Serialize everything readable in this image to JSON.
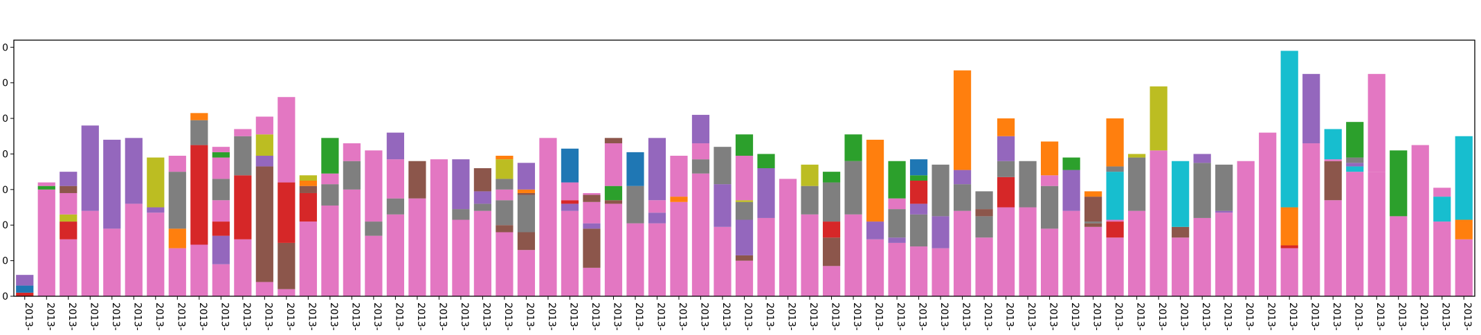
{
  "chart_data": {
    "type": "bar",
    "stacked": true,
    "title": "",
    "xlabel": "",
    "ylabel": "",
    "ylim": [
      0,
      72
    ],
    "y_ticks": [
      0,
      10,
      20,
      30,
      40,
      50,
      60,
      70
    ],
    "y_tick_labels_visible": [
      "0",
      "0",
      "0",
      "0",
      "0",
      "0",
      "0",
      "0"
    ],
    "x_tick_label_visible": "2013-",
    "grid": false,
    "legend": "none",
    "category_count": 67,
    "colors": {
      "pink": "#e377c2",
      "purple": "#9467bd",
      "gray": "#7f7f7f",
      "red": "#d62728",
      "brown": "#8c564b",
      "olive": "#bcbd22",
      "green": "#2ca02c",
      "orange": "#ff7f0e",
      "blue": "#1f77b4",
      "cyan": "#17becf"
    },
    "bars": [
      [
        [
          "red",
          1
        ],
        [
          "blue",
          2
        ],
        [
          "purple",
          3
        ]
      ],
      [
        [
          "pink",
          30
        ],
        [
          "green",
          1
        ],
        [
          "pink",
          1
        ]
      ],
      [
        [
          "pink",
          16
        ],
        [
          "red",
          5
        ],
        [
          "olive",
          2
        ],
        [
          "pink",
          6
        ],
        [
          "brown",
          2
        ],
        [
          "purple",
          4
        ]
      ],
      [
        [
          "pink",
          24
        ],
        [
          "purple",
          24
        ]
      ],
      [
        [
          "pink",
          19
        ],
        [
          "purple",
          25
        ]
      ],
      [
        [
          "pink",
          26
        ],
        [
          "purple",
          18.5
        ]
      ],
      [
        [
          "pink",
          23.5
        ],
        [
          "purple",
          1.5
        ],
        [
          "olive",
          14
        ]
      ],
      [
        [
          "pink",
          13.5
        ],
        [
          "orange",
          5.5
        ],
        [
          "gray",
          16
        ],
        [
          "pink",
          4.5
        ]
      ],
      [
        [
          "pink",
          14.5
        ],
        [
          "red",
          28
        ],
        [
          "gray",
          7
        ],
        [
          "orange",
          2
        ]
      ],
      [
        [
          "pink",
          9
        ],
        [
          "purple",
          8
        ],
        [
          "red",
          4
        ],
        [
          "pink",
          6
        ],
        [
          "gray",
          6
        ],
        [
          "pink",
          6
        ],
        [
          "green",
          1.5
        ],
        [
          "pink",
          1.5
        ]
      ],
      [
        [
          "pink",
          16
        ],
        [
          "red",
          18
        ],
        [
          "gray",
          11
        ],
        [
          "pink",
          2
        ]
      ],
      [
        [
          "pink",
          4
        ],
        [
          "brown",
          32.5
        ],
        [
          "purple",
          3
        ],
        [
          "olive",
          6
        ],
        [
          "pink",
          5
        ]
      ],
      [
        [
          "pink",
          2
        ],
        [
          "brown",
          13
        ],
        [
          "red",
          17
        ],
        [
          "pink",
          24
        ]
      ],
      [
        [
          "pink",
          21
        ],
        [
          "red",
          8
        ],
        [
          "brown",
          2
        ],
        [
          "orange",
          1.5
        ],
        [
          "olive",
          1.5
        ]
      ],
      [
        [
          "pink",
          25.5
        ],
        [
          "gray",
          6
        ],
        [
          "pink",
          3
        ],
        [
          "green",
          10
        ]
      ],
      [
        [
          "pink",
          30
        ],
        [
          "gray",
          8
        ],
        [
          "pink",
          5
        ]
      ],
      [
        [
          "pink",
          17
        ],
        [
          "gray",
          4
        ],
        [
          "pink",
          20
        ]
      ],
      [
        [
          "pink",
          23
        ],
        [
          "gray",
          4.5
        ],
        [
          "pink",
          11
        ],
        [
          "purple",
          7.5
        ]
      ],
      [
        [
          "pink",
          27.5
        ],
        [
          "brown",
          10.5
        ]
      ],
      [
        [
          "pink",
          38.5
        ]
      ],
      [
        [
          "pink",
          21.5
        ],
        [
          "gray",
          3
        ],
        [
          "purple",
          14
        ]
      ],
      [
        [
          "pink",
          24
        ],
        [
          "gray",
          2
        ],
        [
          "purple",
          3.5
        ],
        [
          "brown",
          6.5
        ]
      ],
      [
        [
          "pink",
          18
        ],
        [
          "brown",
          2
        ],
        [
          "gray",
          7
        ],
        [
          "pink",
          3
        ],
        [
          "gray",
          3
        ],
        [
          "olive",
          5.5
        ],
        [
          "orange",
          1
        ]
      ],
      [
        [
          "pink",
          13
        ],
        [
          "brown",
          5
        ],
        [
          "gray",
          10.5
        ],
        [
          "brown",
          0.5
        ],
        [
          "orange",
          1
        ],
        [
          "purple",
          7.5
        ]
      ],
      [
        [
          "pink",
          44.5
        ]
      ],
      [
        [
          "pink",
          24
        ],
        [
          "purple",
          2
        ],
        [
          "red",
          1
        ],
        [
          "pink",
          5
        ],
        [
          "blue",
          9.5
        ]
      ],
      [
        [
          "pink",
          8
        ],
        [
          "brown",
          11
        ],
        [
          "purple",
          1.5
        ],
        [
          "pink",
          6
        ],
        [
          "brown",
          2
        ],
        [
          "pink",
          0.5
        ]
      ],
      [
        [
          "pink",
          26
        ],
        [
          "brown",
          1
        ],
        [
          "green",
          4
        ],
        [
          "pink",
          12
        ],
        [
          "brown",
          1.5
        ]
      ],
      [
        [
          "pink",
          20.5
        ],
        [
          "gray",
          10.5
        ],
        [
          "blue",
          9.5
        ]
      ],
      [
        [
          "pink",
          20.5
        ],
        [
          "purple",
          3
        ],
        [
          "pink",
          3.5
        ],
        [
          "purple",
          17.5
        ]
      ],
      [
        [
          "pink",
          26.5
        ],
        [
          "orange",
          1.5
        ],
        [
          "pink",
          11.5
        ]
      ],
      [
        [
          "pink",
          34.5
        ],
        [
          "gray",
          4
        ],
        [
          "pink",
          4.5
        ],
        [
          "purple",
          8
        ]
      ],
      [
        [
          "pink",
          19.5
        ],
        [
          "purple",
          12
        ],
        [
          "gray",
          10.5
        ]
      ],
      [
        [
          "pink",
          10
        ],
        [
          "brown",
          1.5
        ],
        [
          "purple",
          10
        ],
        [
          "gray",
          5
        ],
        [
          "olive",
          0.5
        ],
        [
          "pink",
          12.5
        ],
        [
          "green",
          6
        ]
      ],
      [
        [
          "pink",
          22
        ],
        [
          "purple",
          14
        ],
        [
          "green",
          4
        ]
      ],
      [
        [
          "pink",
          33
        ]
      ],
      [
        [
          "pink",
          23
        ],
        [
          "gray",
          8
        ],
        [
          "olive",
          6
        ]
      ],
      [
        [
          "pink",
          8.5
        ],
        [
          "brown",
          8
        ],
        [
          "red",
          4.5
        ],
        [
          "gray",
          11
        ],
        [
          "green",
          3
        ]
      ],
      [
        [
          "pink",
          23
        ],
        [
          "gray",
          15
        ],
        [
          "green",
          7.5
        ]
      ],
      [
        [
          "pink",
          16
        ],
        [
          "purple",
          5
        ],
        [
          "orange",
          23
        ]
      ],
      [
        [
          "pink",
          15
        ],
        [
          "purple",
          1.5
        ],
        [
          "gray",
          8
        ],
        [
          "pink",
          3
        ],
        [
          "green",
          10.5
        ]
      ],
      [
        [
          "pink",
          14
        ],
        [
          "gray",
          9
        ],
        [
          "purple",
          3
        ],
        [
          "red",
          6.5
        ],
        [
          "green",
          1.5
        ],
        [
          "blue",
          4.5
        ]
      ],
      [
        [
          "pink",
          13.5
        ],
        [
          "purple",
          9
        ],
        [
          "gray",
          14.5
        ]
      ],
      [
        [
          "pink",
          24
        ],
        [
          "gray",
          7.5
        ],
        [
          "purple",
          4
        ],
        [
          "orange",
          28
        ]
      ],
      [
        [
          "pink",
          16.5
        ],
        [
          "gray",
          6
        ],
        [
          "brown",
          2
        ],
        [
          "gray",
          5
        ]
      ],
      [
        [
          "pink",
          25
        ],
        [
          "red",
          8.5
        ],
        [
          "gray",
          4.5
        ],
        [
          "purple",
          7
        ],
        [
          "orange",
          5
        ]
      ],
      [
        [
          "pink",
          25
        ],
        [
          "gray",
          13
        ]
      ],
      [
        [
          "pink",
          19
        ],
        [
          "gray",
          12
        ],
        [
          "pink",
          3
        ],
        [
          "orange",
          9.5
        ]
      ],
      [
        [
          "pink",
          24
        ],
        [
          "purple",
          11.5
        ],
        [
          "green",
          3.5
        ]
      ],
      [
        [
          "pink",
          19.5
        ],
        [
          "brown",
          1
        ],
        [
          "gray",
          0.5
        ],
        [
          "brown",
          7
        ],
        [
          "orange",
          1.5
        ]
      ],
      [
        [
          "pink",
          16.5
        ],
        [
          "red",
          4.5
        ],
        [
          "pink",
          0.5
        ],
        [
          "cyan",
          13.5
        ],
        [
          "gray",
          1.5
        ],
        [
          "orange",
          13.5
        ]
      ],
      [
        [
          "pink",
          24
        ],
        [
          "gray",
          15
        ],
        [
          "olive",
          1
        ]
      ],
      [
        [
          "pink",
          41
        ],
        [
          "olive",
          18
        ]
      ],
      [
        [
          "pink",
          16.5
        ],
        [
          "brown",
          3
        ],
        [
          "cyan",
          18.5
        ]
      ],
      [
        [
          "pink",
          22
        ],
        [
          "gray",
          15.5
        ],
        [
          "purple",
          2.5
        ]
      ],
      [
        [
          "pink",
          23.5
        ],
        [
          "purple",
          0.5
        ],
        [
          "gray",
          13
        ]
      ],
      [
        [
          "pink",
          38
        ]
      ],
      [
        [
          "pink",
          46
        ]
      ],
      [
        [
          "pink",
          13.5
        ],
        [
          "red",
          0.8
        ],
        [
          "orange",
          10.7
        ],
        [
          "cyan",
          44
        ]
      ],
      [
        [
          "pink",
          43
        ],
        [
          "purple",
          19.5
        ]
      ],
      [
        [
          "pink",
          27
        ],
        [
          "brown",
          11
        ],
        [
          "pink",
          0.5
        ],
        [
          "cyan",
          8.5
        ]
      ],
      [
        [
          "pink",
          35
        ],
        [
          "cyan",
          1.5
        ],
        [
          "purple",
          1
        ],
        [
          "gray",
          1.5
        ],
        [
          "green",
          10
        ]
      ],
      [
        [
          "pink",
          35
        ],
        [
          "pink",
          27.5
        ]
      ],
      [
        [
          "pink",
          22.5
        ],
        [
          "green",
          18.5
        ]
      ],
      [
        [
          "pink",
          42.5
        ]
      ],
      [
        [
          "pink",
          21
        ],
        [
          "cyan",
          7
        ],
        [
          "pink",
          2.5
        ]
      ],
      [
        [
          "pink",
          16
        ],
        [
          "orange",
          5.5
        ],
        [
          "cyan",
          23.5
        ]
      ]
    ]
  }
}
